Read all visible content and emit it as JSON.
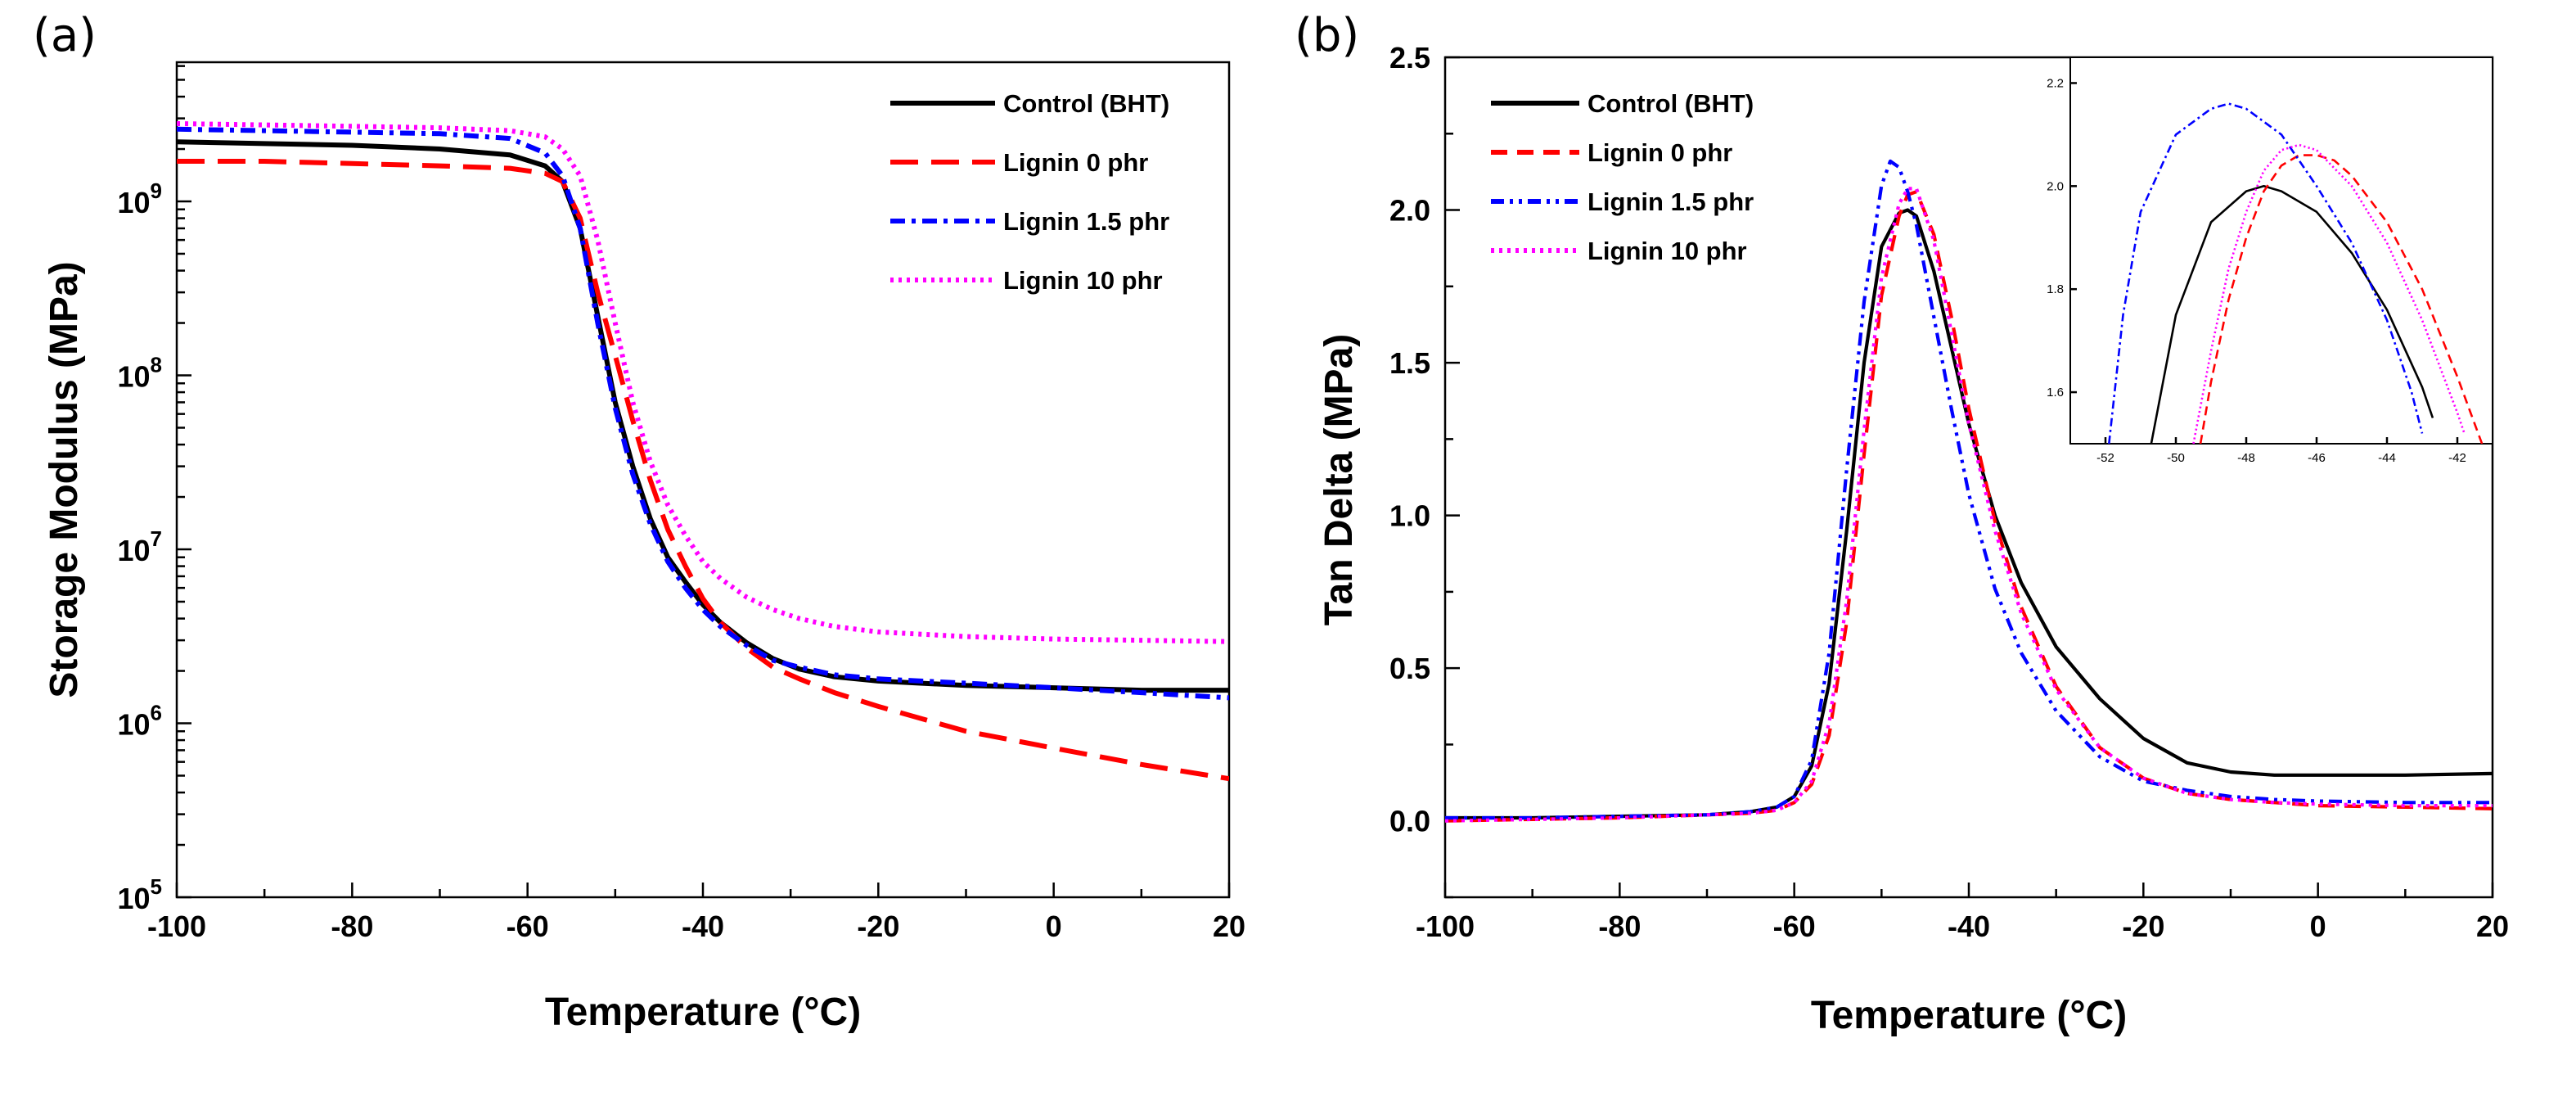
{
  "figure": {
    "panels": [
      {
        "panel_label": "(a)"
      },
      {
        "panel_label": "(b)"
      }
    ]
  },
  "chart_data": [
    {
      "id": "a",
      "type": "line",
      "panel_label": "(a)",
      "title": "",
      "xlabel": "Temperature (°C)",
      "ylabel": "Storage Modulus (MPa)",
      "xlim": [
        -100,
        20
      ],
      "ylim_log10": [
        5,
        9.8
      ],
      "y_scale": "log",
      "grid": false,
      "legend_position": "top-right",
      "x_ticks": [
        "-100",
        "-80",
        "-60",
        "-40",
        "-20",
        "0",
        "20"
      ],
      "y_ticks": [
        {
          "base": "10",
          "exp": "5"
        },
        {
          "base": "10",
          "exp": "6"
        },
        {
          "base": "10",
          "exp": "7"
        },
        {
          "base": "10",
          "exp": "8"
        },
        {
          "base": "10",
          "exp": "9"
        }
      ],
      "series": [
        {
          "name": "Control (BHT)",
          "color": "#000000",
          "dash": "solid",
          "x": [
            -100,
            -90,
            -80,
            -70,
            -62,
            -58,
            -56,
            -54,
            -52,
            -50,
            -48,
            -46,
            -44,
            -42,
            -40,
            -38,
            -35,
            -32,
            -29,
            -25,
            -20,
            -10,
            0,
            10,
            20
          ],
          "y": [
            2200000000.0,
            2150000000.0,
            2100000000.0,
            2000000000.0,
            1850000000.0,
            1600000000.0,
            1300000000.0,
            700000000.0,
            220000000.0,
            70000000.0,
            30000000.0,
            15000000.0,
            9000000.0,
            6500000.0,
            4800000.0,
            3800000.0,
            2900000.0,
            2350000.0,
            2050000.0,
            1850000.0,
            1750000.0,
            1650000.0,
            1600000.0,
            1550000.0,
            1550000.0
          ]
        },
        {
          "name": "Lignin 0 phr",
          "color": "#ff0000",
          "dash": "long-dash",
          "x": [
            -100,
            -90,
            -80,
            -70,
            -62,
            -58,
            -56,
            -54,
            -52,
            -50,
            -48,
            -46,
            -44,
            -42,
            -40,
            -38,
            -35,
            -32,
            -29,
            -25,
            -20,
            -10,
            0,
            10,
            20
          ],
          "y": [
            1700000000.0,
            1700000000.0,
            1650000000.0,
            1600000000.0,
            1550000000.0,
            1450000000.0,
            1300000000.0,
            800000000.0,
            300000000.0,
            130000000.0,
            55000000.0,
            25000000.0,
            13000000.0,
            8000000.0,
            5200000.0,
            3800000.0,
            2700000.0,
            2100000.0,
            1800000.0,
            1500000.0,
            1250000.0,
            900000.0,
            720000.0,
            580000.0,
            480000.0
          ]
        },
        {
          "name": "Lignin 1.5 phr",
          "color": "#0000ff",
          "dash": "dash-dot",
          "x": [
            -100,
            -90,
            -80,
            -70,
            -62,
            -58,
            -56,
            -54,
            -52,
            -50,
            -48,
            -46,
            -44,
            -42,
            -40,
            -38,
            -35,
            -32,
            -29,
            -25,
            -20,
            -10,
            0,
            10,
            20
          ],
          "y": [
            2600000000.0,
            2550000000.0,
            2500000000.0,
            2450000000.0,
            2300000000.0,
            1900000000.0,
            1400000000.0,
            700000000.0,
            200000000.0,
            65000000.0,
            27000000.0,
            14000000.0,
            8500000.0,
            6000000.0,
            4500000.0,
            3600000.0,
            2800000.0,
            2300000.0,
            2100000.0,
            1900000.0,
            1800000.0,
            1700000.0,
            1600000.0,
            1500000.0,
            1400000.0
          ]
        },
        {
          "name": "Lignin 10 phr",
          "color": "#ff00ff",
          "dash": "dotted",
          "x": [
            -100,
            -90,
            -80,
            -70,
            -62,
            -58,
            -56,
            -54,
            -52,
            -50,
            -48,
            -46,
            -44,
            -42,
            -40,
            -38,
            -35,
            -32,
            -29,
            -25,
            -20,
            -10,
            0,
            10,
            20
          ],
          "y": [
            2800000000.0,
            2750000000.0,
            2700000000.0,
            2650000000.0,
            2550000000.0,
            2350000000.0,
            2000000000.0,
            1400000000.0,
            600000000.0,
            200000000.0,
            70000000.0,
            32000000.0,
            18000000.0,
            12000000.0,
            8500000.0,
            6800000.0,
            5300000.0,
            4500000.0,
            4000000.0,
            3600000.0,
            3350000.0,
            3150000.0,
            3050000.0,
            3000000.0,
            2950000.0
          ]
        }
      ]
    },
    {
      "id": "b",
      "type": "line",
      "panel_label": "(b)",
      "title": "",
      "xlabel": "Temperature (°C)",
      "ylabel": "Tan Delta (MPa)",
      "xlim": [
        -100,
        20
      ],
      "ylim": [
        -0.25,
        2.5
      ],
      "grid": false,
      "legend_position": "top-left",
      "x_ticks": [
        "-100",
        "-80",
        "-60",
        "-40",
        "-20",
        "0",
        "20"
      ],
      "y_ticks": [
        "0.0",
        "0.5",
        "1.0",
        "1.5",
        "2.0",
        "2.5"
      ],
      "series": [
        {
          "name": "Control (BHT)",
          "color": "#000000",
          "dash": "solid",
          "x": [
            -100,
            -90,
            -80,
            -70,
            -65,
            -62,
            -60,
            -58,
            -56,
            -54,
            -52,
            -50,
            -48,
            -47,
            -46,
            -44,
            -42,
            -40,
            -37,
            -34,
            -30,
            -25,
            -20,
            -15,
            -10,
            -5,
            0,
            10,
            20
          ],
          "y": [
            0.01,
            0.01,
            0.015,
            0.02,
            0.03,
            0.045,
            0.08,
            0.18,
            0.45,
            0.95,
            1.5,
            1.88,
            1.99,
            2.0,
            1.98,
            1.8,
            1.55,
            1.3,
            1.0,
            0.78,
            0.57,
            0.4,
            0.27,
            0.19,
            0.16,
            0.15,
            0.15,
            0.15,
            0.155
          ]
        },
        {
          "name": "Lignin 0 phr",
          "color": "#ff0000",
          "dash": "dashed",
          "x": [
            -100,
            -90,
            -80,
            -70,
            -65,
            -62,
            -60,
            -58,
            -56,
            -54,
            -52,
            -50,
            -48,
            -47,
            -46,
            -44,
            -42,
            -40,
            -37,
            -34,
            -30,
            -25,
            -20,
            -15,
            -10,
            -5,
            0,
            10,
            20
          ],
          "y": [
            0.0,
            0.005,
            0.01,
            0.02,
            0.025,
            0.035,
            0.06,
            0.12,
            0.28,
            0.65,
            1.2,
            1.72,
            1.98,
            2.05,
            2.06,
            1.92,
            1.65,
            1.35,
            0.98,
            0.7,
            0.44,
            0.24,
            0.14,
            0.09,
            0.07,
            0.06,
            0.05,
            0.045,
            0.04
          ]
        },
        {
          "name": "Lignin 1.5 phr",
          "color": "#0000ff",
          "dash": "dash-dot-dot",
          "x": [
            -100,
            -90,
            -80,
            -70,
            -65,
            -62,
            -60,
            -58,
            -56,
            -54,
            -52,
            -50,
            -49,
            -48,
            -47,
            -46,
            -44,
            -42,
            -40,
            -37,
            -34,
            -30,
            -25,
            -20,
            -15,
            -10,
            -5,
            0,
            10,
            20
          ],
          "y": [
            0.01,
            0.01,
            0.015,
            0.02,
            0.03,
            0.045,
            0.08,
            0.2,
            0.55,
            1.15,
            1.7,
            2.08,
            2.16,
            2.14,
            2.06,
            1.95,
            1.65,
            1.35,
            1.07,
            0.76,
            0.55,
            0.36,
            0.21,
            0.13,
            0.1,
            0.08,
            0.07,
            0.065,
            0.06,
            0.06
          ]
        },
        {
          "name": "Lignin 10 phr",
          "color": "#ff00ff",
          "dash": "dotted",
          "x": [
            -100,
            -90,
            -80,
            -70,
            -65,
            -62,
            -60,
            -58,
            -56,
            -54,
            -52,
            -50,
            -48,
            -47,
            -46,
            -44,
            -42,
            -40,
            -37,
            -34,
            -30,
            -25,
            -20,
            -15,
            -10,
            -5,
            0,
            10,
            20
          ],
          "y": [
            0.0,
            0.005,
            0.01,
            0.02,
            0.025,
            0.035,
            0.06,
            0.13,
            0.32,
            0.72,
            1.28,
            1.78,
            2.02,
            2.07,
            2.07,
            1.9,
            1.6,
            1.3,
            0.95,
            0.68,
            0.43,
            0.24,
            0.14,
            0.09,
            0.07,
            0.06,
            0.055,
            0.05,
            0.05
          ]
        }
      ],
      "inset": {
        "xlim": [
          -53,
          -41
        ],
        "ylim": [
          1.5,
          2.25
        ],
        "x_ticks": [
          "-52",
          "-50",
          "-48",
          "-46",
          "-44",
          "-42"
        ],
        "y_ticks": [
          "1.6",
          "1.8",
          "2.0",
          "2.2"
        ],
        "series": [
          {
            "name": "Control (BHT)",
            "color": "#000000",
            "dash": "solid",
            "x": [
              -50.7,
              -50,
              -49,
              -48,
              -47.5,
              -47,
              -46,
              -45,
              -44,
              -43,
              -42.7
            ],
            "y": [
              1.5,
              1.75,
              1.93,
              1.99,
              2.0,
              1.99,
              1.95,
              1.87,
              1.76,
              1.61,
              1.55
            ]
          },
          {
            "name": "Lignin 0 phr",
            "color": "#ff0000",
            "dash": "dashed",
            "x": [
              -49.3,
              -49,
              -48.5,
              -48,
              -47.5,
              -47,
              -46.5,
              -46,
              -45.5,
              -45,
              -44,
              -43,
              -42,
              -41.3
            ],
            "y": [
              1.5,
              1.62,
              1.78,
              1.9,
              1.99,
              2.04,
              2.06,
              2.06,
              2.05,
              2.02,
              1.93,
              1.8,
              1.63,
              1.5
            ]
          },
          {
            "name": "Lignin 1.5 phr",
            "color": "#0000ff",
            "dash": "dash-dot",
            "x": [
              -51.9,
              -51.5,
              -51,
              -50,
              -49,
              -48.5,
              -48,
              -47,
              -46,
              -45,
              -44,
              -43.3,
              -43
            ],
            "y": [
              1.5,
              1.75,
              1.95,
              2.1,
              2.15,
              2.16,
              2.15,
              2.1,
              2.0,
              1.89,
              1.74,
              1.6,
              1.52
            ]
          },
          {
            "name": "Lignin 10 phr",
            "color": "#ff00ff",
            "dash": "dotted",
            "x": [
              -49.5,
              -49,
              -48.5,
              -48,
              -47.5,
              -47,
              -46.5,
              -46,
              -45,
              -44,
              -43,
              -42,
              -41.8
            ],
            "y": [
              1.5,
              1.68,
              1.84,
              1.95,
              2.03,
              2.07,
              2.08,
              2.07,
              2.0,
              1.89,
              1.74,
              1.56,
              1.52
            ]
          }
        ]
      }
    }
  ]
}
